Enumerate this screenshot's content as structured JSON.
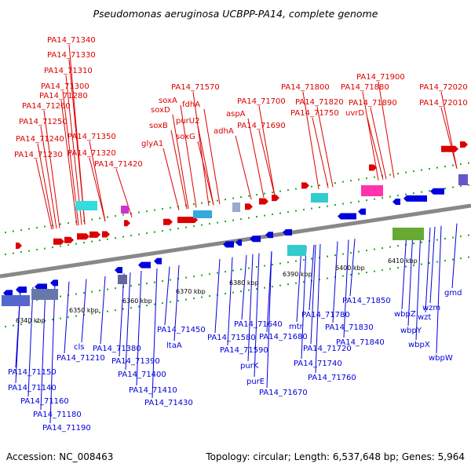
{
  "title": "Pseudomonas aeruginosa UCBPP-PA14, complete genome",
  "footer": {
    "accession": "Accession: NC_008463",
    "summary": "Topology: circular; Length: 6,537,648 bp; Genes: 5,964"
  },
  "colors": {
    "forward": "#dd0000",
    "reverse": "#0000dd",
    "backbone": "#888888",
    "tick": "#22aa22"
  },
  "scale_labels": [
    "6340 kbp",
    "6350 kbp",
    "6360 kbp",
    "6370 kbp",
    "6380 kbp",
    "6390 kbp",
    "6400 kbp",
    "6410 kbp"
  ],
  "forward_labels": [
    "PA14_71340",
    "PA14_71330",
    "PA14_71310",
    "PA14_71300",
    "PA14_71280",
    "PA14_71260",
    "PA14_71250",
    "PA14_71240",
    "PA14_71350",
    "PA14_71230",
    "PA14_71320",
    "PA14_71420",
    "glyA1",
    "soxB",
    "soxD",
    "soxA",
    "purU2",
    "soxG",
    "fdhA",
    "PA14_71570",
    "adhA",
    "aspA",
    "PA14_71700",
    "PA14_71690",
    "PA14_71750",
    "PA14_71800",
    "PA14_71820",
    "uvrD",
    "PA14_71880",
    "PA14_71890",
    "PA14_71900",
    "PA14_72010",
    "PA14_72020"
  ],
  "reverse_labels": [
    "cls",
    "PA14_71210",
    "PA14_71150",
    "PA14_71140",
    "PA14_71160",
    "PA14_71180",
    "PA14_71190",
    "PA14_71380",
    "PA14_71390",
    "PA14_71400",
    "PA14_71410",
    "PA14_71430",
    "PA14_71450",
    "ltaA",
    "PA14_71580",
    "PA14_71590",
    "purK",
    "purE",
    "PA14_71640",
    "PA14_71680",
    "PA14_71670",
    "mtr",
    "PA14_71720",
    "PA14_71740",
    "PA14_71760",
    "PA14_71780",
    "PA14_71830",
    "PA14_71840",
    "PA14_71850",
    "wbpZ",
    "wbpY",
    "wbpX",
    "wzt",
    "wzm",
    "wbpW",
    "gmd"
  ]
}
